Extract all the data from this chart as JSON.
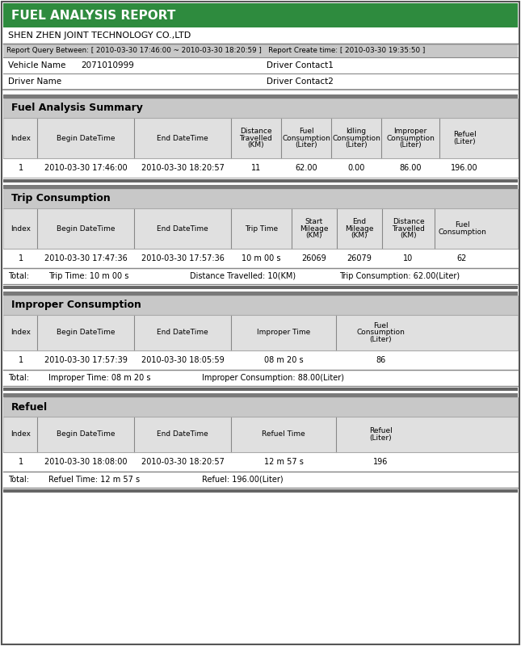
{
  "title": "FUEL ANALYSIS REPORT",
  "company": "SHEN ZHEN JOINT TECHNOLOGY CO.,LTD",
  "report_query": "Report Query Between: [ 2010-03-30 17:46:00 ~ 2010-03-30 18:20:59 ]   Report Create time: [ 2010-03-30 19:35:50 ]",
  "vehicle_name_label": "Vehicle Name",
  "vehicle_name_value": "2071010999",
  "driver_contact1_label": "Driver Contact1",
  "driver_name_label": "Driver Name",
  "driver_contact2_label": "Driver Contact2",
  "header_bg": "#2e8b3e",
  "section_dark_bg": "#7a7a7a",
  "section_light_bg": "#c8c8c8",
  "row_alt_bg": "#e0e0e0",
  "white_bg": "#ffffff",
  "border_color": "#888888",
  "summary_title": "Fuel Analysis Summary",
  "summary_headers": [
    "Index",
    "Begin DateTime",
    "End DateTime",
    "Distance\nTravelled\n(KM)",
    "Fuel\nConsumption\n(Liter)",
    "Idling\nConsumption\n(Liter)",
    "Improper\nConsumption\n(Liter)",
    "Refuel\n(Liter)"
  ],
  "summary_col_widths": [
    40,
    120,
    120,
    62,
    62,
    62,
    72,
    62
  ],
  "summary_data": [
    [
      "1",
      "2010-03-30 17:46:00",
      "2010-03-30 18:20:57",
      "11",
      "62.00",
      "0.00",
      "86.00",
      "196.00"
    ]
  ],
  "trip_title": "Trip Consumption",
  "trip_headers": [
    "Index",
    "Begin DateTime",
    "End DateTime",
    "Trip Time",
    "Start\nMileage\n(KM)",
    "End\nMileage\n(KM)",
    "Distance\nTravelled\n(KM)",
    "Fuel\nConsumption"
  ],
  "trip_col_widths": [
    40,
    120,
    120,
    75,
    56,
    56,
    65,
    68
  ],
  "trip_data": [
    [
      "1",
      "2010-03-30 17:47:36",
      "2010-03-30 17:57:36",
      "10 m 00 s",
      "26069",
      "26079",
      "10",
      "62"
    ]
  ],
  "improper_title": "Improper Consumption",
  "improper_headers": [
    "Index",
    "Begin DateTime",
    "End DateTime",
    "Improper Time",
    "Fuel\nConsumption\n(Liter)"
  ],
  "improper_col_widths": [
    40,
    120,
    120,
    130,
    110
  ],
  "improper_data": [
    [
      "1",
      "2010-03-30 17:57:39",
      "2010-03-30 18:05:59",
      "08 m 20 s",
      "86"
    ]
  ],
  "refuel_title": "Refuel",
  "refuel_headers": [
    "Index",
    "Begin DateTime",
    "End DateTime",
    "Refuel Time",
    "Refuel\n(Liter)"
  ],
  "refuel_col_widths": [
    40,
    120,
    120,
    130,
    110
  ],
  "refuel_data": [
    [
      "1",
      "2010-03-30 18:08:00",
      "2010-03-30 18:20:57",
      "12 m 57 s",
      "196"
    ]
  ]
}
